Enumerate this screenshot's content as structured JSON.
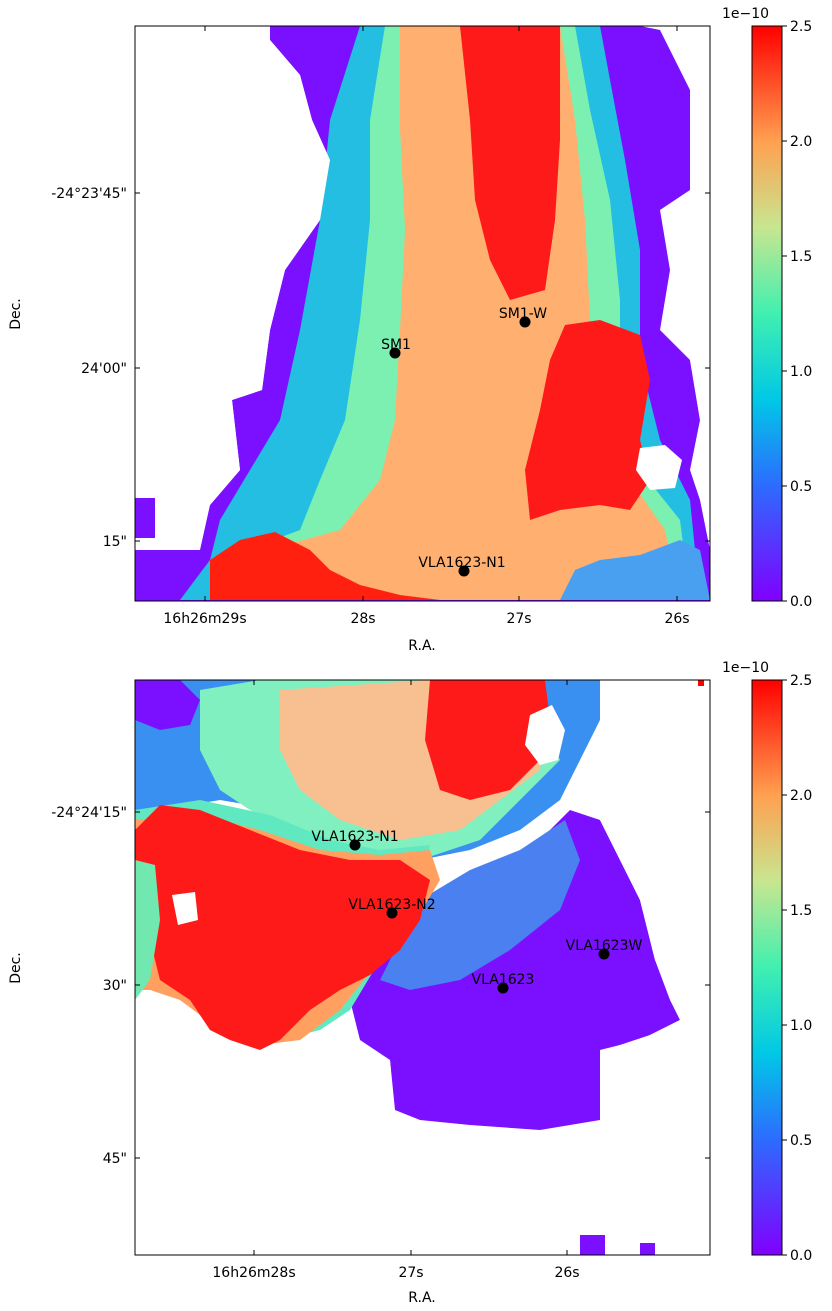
{
  "figure": {
    "colormap": "rainbow",
    "colormap_stops": [
      "#8000ff",
      "#0080ff",
      "#00ffb4",
      "#80ffb4",
      "#ffb464",
      "#ff8040",
      "#ff0000"
    ]
  },
  "chart_data": [
    {
      "type": "heatmap",
      "title": "",
      "xlabel": "R.A.",
      "ylabel": "Dec.",
      "x_ticks": [
        "16h26m29s",
        "28s",
        "27s",
        "26s"
      ],
      "y_ticks": [
        "-24°23'45\"",
        "24'00\"",
        "15\""
      ],
      "colorbar": {
        "min": 0.0,
        "max": 2.5,
        "ticks": [
          "0.0",
          "0.5",
          "1.0",
          "1.5",
          "2.0",
          "2.5"
        ],
        "multiplier": "1e−10"
      },
      "sources": [
        {
          "name": "SM1",
          "ra": "16h26m27.8s",
          "dec": "-24°24'00\""
        },
        {
          "name": "SM1-W",
          "ra": "16h26m26.95s",
          "dec": "-24°23'57\""
        },
        {
          "name": "VLA1623-N1",
          "ra": "16h26m27.35s",
          "dec": "-24°24'17\""
        }
      ]
    },
    {
      "type": "heatmap",
      "title": "",
      "xlabel": "R.A.",
      "ylabel": "Dec.",
      "x_ticks": [
        "16h26m28s",
        "27s",
        "26s"
      ],
      "y_ticks": [
        "-24°24'15\"",
        "30\"",
        "45\""
      ],
      "colorbar": {
        "min": 0.0,
        "max": 2.5,
        "ticks": [
          "0.0",
          "0.5",
          "1.0",
          "1.5",
          "2.0",
          "2.5"
        ],
        "multiplier": "1e−10"
      },
      "sources": [
        {
          "name": "VLA1623-N1",
          "ra": "16h26m27.3s",
          "dec": "-24°24'18\""
        },
        {
          "name": "VLA1623-N2",
          "ra": "16h26m27.1s",
          "dec": "-24°24'24\""
        },
        {
          "name": "VLA1623",
          "ra": "16h26m26.4s",
          "dec": "-24°24'30\""
        },
        {
          "name": "VLA1623W",
          "ra": "16h26m25.75s",
          "dec": "-24°24'28\""
        }
      ]
    }
  ]
}
